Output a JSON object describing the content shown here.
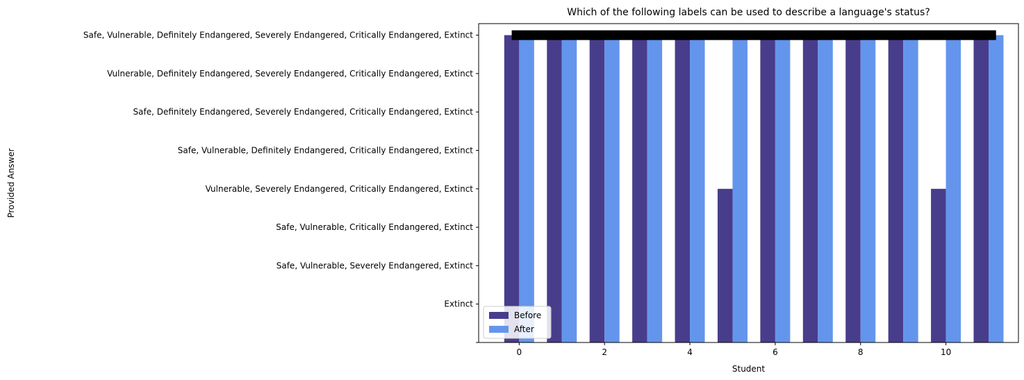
{
  "chart_data": {
    "type": "bar",
    "title": "Which of the following labels can be used to describe a language's status?",
    "xlabel": "Student",
    "ylabel": "Provided Answer",
    "x": [
      0,
      1,
      2,
      3,
      4,
      5,
      6,
      7,
      8,
      9,
      10,
      11
    ],
    "xticks": [
      "0",
      "2",
      "4",
      "6",
      "8",
      "10"
    ],
    "y_categories": [
      "",
      "Extinct",
      "Safe, Vulnerable, Severely Endangered, Extinct",
      "Safe, Vulnerable, Critically Endangered, Extinct",
      "Vulnerable, Severely Endangered, Critically Endangered, Extinct",
      "Safe, Vulnerable, Definitely Endangered, Critically Endangered, Extinct",
      "Safe, Definitely Endangered, Severely Endangered, Critically Endangered, Extinct",
      "Vulnerable, Definitely Endangered, Severely Endangered, Critically Endangered, Extinct",
      "Safe, Vulnerable, Definitely Endangered, Severely Endangered, Critically Endangered, Extinct"
    ],
    "series": [
      {
        "name": "Before",
        "color": "#483D8B",
        "values": [
          8,
          8,
          8,
          8,
          8,
          4,
          8,
          8,
          8,
          8,
          4,
          8
        ]
      },
      {
        "name": "After",
        "color": "#6495ED",
        "values": [
          8,
          8,
          8,
          8,
          8,
          8,
          8,
          8,
          8,
          8,
          8,
          8
        ]
      }
    ],
    "reference_line": {
      "value": 8,
      "x_range": [
        0,
        11
      ],
      "color": "#000000"
    },
    "xlim": [
      -0.95,
      11.7
    ],
    "ylim": [
      0,
      8.3
    ],
    "grid": false,
    "legend_position": "lower-left"
  }
}
